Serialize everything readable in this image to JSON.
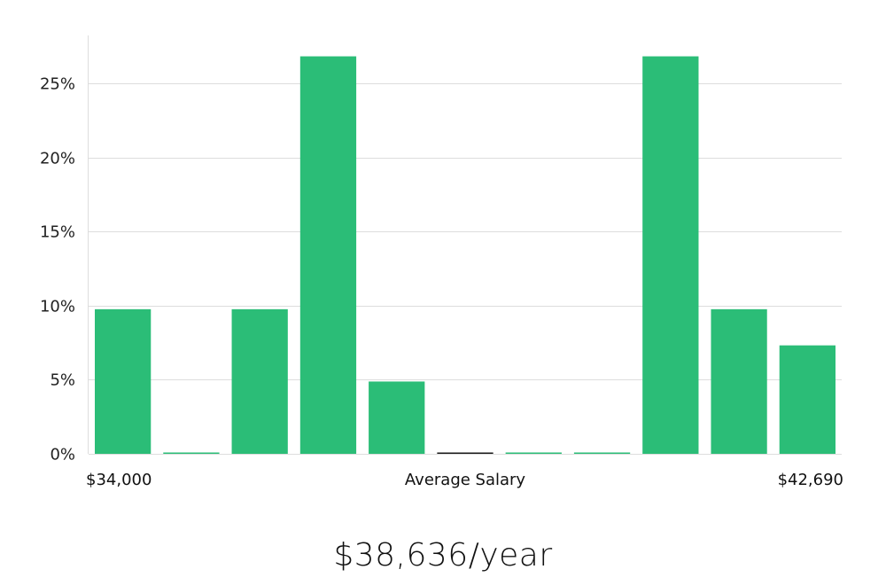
{
  "chart_data": {
    "type": "bar",
    "values": [
      9.76,
      0,
      9.76,
      26.83,
      4.88,
      0,
      0,
      0,
      26.83,
      9.76,
      7.32
    ],
    "ylim": [
      0,
      28
    ],
    "yticks": [
      "0%",
      "5%",
      "10%",
      "15%",
      "20%",
      "25%"
    ],
    "ytick_values": [
      0,
      5,
      10,
      15,
      20,
      25
    ],
    "x_min_label": "$34,000",
    "x_center_label": "Average Salary",
    "x_max_label": "$42,690",
    "grid": true,
    "bar_color": "#2bbd77",
    "highlight_bar_index": 5,
    "highlight_color": "#1a1a1a"
  },
  "average_salary": "$38,636/year"
}
